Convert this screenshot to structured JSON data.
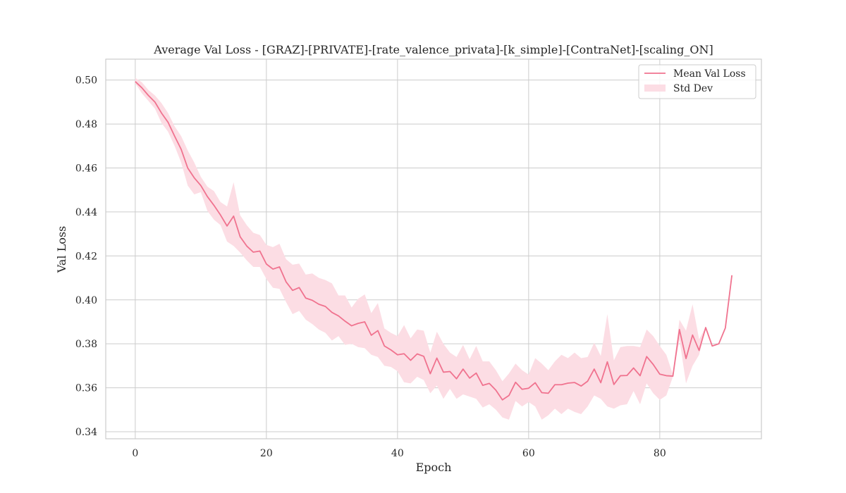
{
  "chart_data": {
    "type": "line",
    "title": "Average Val Loss - [GRAZ]-[PRIVATE]-[rate_valence_privata]-[k_simple]-[ContraNet]-[scaling_ON]",
    "xlabel": "Epoch",
    "ylabel": "Val Loss",
    "xlim": [
      -4.5,
      95.5
    ],
    "ylim": [
      0.3368,
      0.5095
    ],
    "xticks": [
      0,
      20,
      40,
      60,
      80
    ],
    "yticks": [
      0.34,
      0.36,
      0.38,
      0.4,
      0.42,
      0.44,
      0.46,
      0.48,
      0.5
    ],
    "ytick_labels": [
      "0.34",
      "0.36",
      "0.38",
      "0.40",
      "0.42",
      "0.44",
      "0.46",
      "0.48",
      "0.50"
    ],
    "grid": true,
    "legend_position": "top-right",
    "line_color": "#f0738f",
    "band_color": "#fcdde4",
    "series": [
      {
        "name": "Mean Val Loss",
        "x": [
          0,
          1,
          2,
          3,
          4,
          5,
          6,
          7,
          8,
          9,
          10,
          11,
          12,
          13,
          14,
          15,
          16,
          17,
          18,
          19,
          20,
          21,
          22,
          23,
          24,
          25,
          26,
          27,
          28,
          29,
          30,
          31,
          32,
          33,
          34,
          35,
          36,
          37,
          38,
          39,
          40,
          41,
          42,
          43,
          44,
          45,
          46,
          47,
          48,
          49,
          50,
          51,
          52,
          53,
          54,
          55,
          56,
          57,
          58,
          59,
          60,
          61,
          62,
          63,
          64,
          65,
          66,
          67,
          68,
          69,
          70,
          71,
          72,
          73,
          74,
          75,
          76,
          77,
          78,
          79,
          80,
          81,
          82,
          83,
          84,
          85,
          86,
          87,
          88,
          89,
          90,
          91
        ],
        "values": [
          0.4993,
          0.4965,
          0.493,
          0.49,
          0.485,
          0.4808,
          0.4745,
          0.4685,
          0.46,
          0.4555,
          0.452,
          0.447,
          0.443,
          0.4386,
          0.4336,
          0.4381,
          0.4287,
          0.4245,
          0.4217,
          0.4222,
          0.4163,
          0.414,
          0.415,
          0.4082,
          0.4043,
          0.4056,
          0.4008,
          0.3998,
          0.398,
          0.397,
          0.3943,
          0.3927,
          0.3903,
          0.3882,
          0.3893,
          0.39,
          0.3839,
          0.386,
          0.379,
          0.3772,
          0.375,
          0.3755,
          0.3725,
          0.3754,
          0.3743,
          0.3664,
          0.3735,
          0.3671,
          0.3674,
          0.3641,
          0.3685,
          0.3644,
          0.3667,
          0.3611,
          0.362,
          0.3589,
          0.3545,
          0.3565,
          0.3625,
          0.3593,
          0.3598,
          0.3623,
          0.3578,
          0.3575,
          0.3614,
          0.3614,
          0.3621,
          0.3624,
          0.3608,
          0.363,
          0.3685,
          0.3623,
          0.3718,
          0.3615,
          0.3655,
          0.3656,
          0.369,
          0.3655,
          0.3742,
          0.3706,
          0.3662,
          0.3655,
          0.3653,
          0.3865,
          0.3733,
          0.384,
          0.377,
          0.3874,
          0.379,
          0.38,
          0.3872,
          0.4112
        ]
      },
      {
        "name": "Std Dev",
        "upper": [
          0.501,
          0.499,
          0.4955,
          0.493,
          0.4895,
          0.485,
          0.479,
          0.4745,
          0.468,
          0.4625,
          0.456,
          0.4515,
          0.4495,
          0.4445,
          0.4425,
          0.4535,
          0.4385,
          0.434,
          0.4305,
          0.4295,
          0.425,
          0.424,
          0.4255,
          0.4185,
          0.416,
          0.4165,
          0.4115,
          0.412,
          0.41,
          0.409,
          0.4075,
          0.402,
          0.402,
          0.3965,
          0.4005,
          0.4025,
          0.394,
          0.3985,
          0.387,
          0.385,
          0.3835,
          0.3885,
          0.3825,
          0.3865,
          0.386,
          0.376,
          0.3855,
          0.38,
          0.376,
          0.374,
          0.3795,
          0.373,
          0.379,
          0.372,
          0.372,
          0.368,
          0.363,
          0.3665,
          0.371,
          0.368,
          0.366,
          0.3735,
          0.371,
          0.368,
          0.372,
          0.375,
          0.3735,
          0.376,
          0.3735,
          0.374,
          0.3805,
          0.3745,
          0.3935,
          0.3725,
          0.3785,
          0.379,
          0.379,
          0.3785,
          0.3865,
          0.3835,
          0.379,
          0.375,
          0.366,
          0.391,
          0.386,
          0.398,
          0.382,
          0.3875,
          0.379,
          0.38,
          0.3872,
          0.4112
        ],
        "lower": [
          0.4985,
          0.494,
          0.4905,
          0.487,
          0.4805,
          0.4765,
          0.47,
          0.4625,
          0.452,
          0.448,
          0.449,
          0.4405,
          0.4365,
          0.434,
          0.4265,
          0.4245,
          0.4215,
          0.418,
          0.415,
          0.415,
          0.4095,
          0.4055,
          0.405,
          0.399,
          0.3935,
          0.395,
          0.391,
          0.389,
          0.3865,
          0.385,
          0.3815,
          0.3835,
          0.3795,
          0.38,
          0.3785,
          0.378,
          0.375,
          0.374,
          0.37,
          0.3695,
          0.3675,
          0.3625,
          0.362,
          0.365,
          0.3635,
          0.3575,
          0.361,
          0.355,
          0.3595,
          0.355,
          0.357,
          0.356,
          0.355,
          0.351,
          0.3525,
          0.35,
          0.3465,
          0.3455,
          0.354,
          0.3515,
          0.3535,
          0.3515,
          0.3455,
          0.3475,
          0.3505,
          0.348,
          0.3505,
          0.349,
          0.348,
          0.3515,
          0.3565,
          0.355,
          0.3515,
          0.3505,
          0.352,
          0.3525,
          0.3585,
          0.3525,
          0.362,
          0.3575,
          0.3545,
          0.3565,
          0.365,
          0.382,
          0.362,
          0.37,
          0.375,
          0.3874,
          0.379,
          0.38,
          0.3872,
          0.4112
        ]
      }
    ]
  }
}
